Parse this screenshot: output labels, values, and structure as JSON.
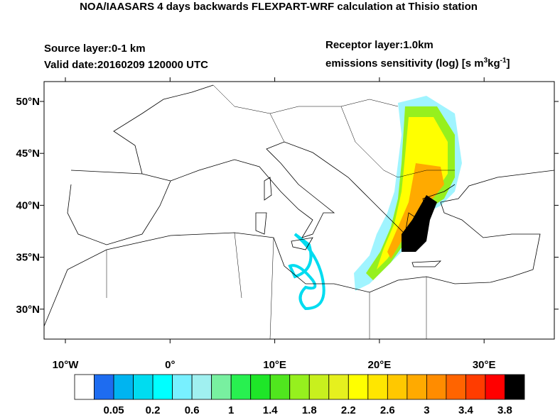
{
  "title": "NOA/IAASARS 4 days backwards FLEXPART-WRF calculation at Thisio station",
  "source_layer": "Source layer:0-1 km",
  "valid_date": "Valid date:20160209 120000 UTC",
  "receptor_layer": "Receptor layer:1.0km",
  "units_label": [
    "emissions sensitivity (log) [s m",
    "3",
    "kg",
    "-1",
    "]"
  ],
  "map": {
    "lat_labels": [
      "50°N",
      "45°N",
      "40°N",
      "35°N",
      "30°N"
    ],
    "lon_labels": [
      "10°W",
      "0°",
      "10°E",
      "20°E",
      "30°E"
    ]
  },
  "colorbar": {
    "colors": [
      "#ffffff",
      "#1e6cf0",
      "#00b4f0",
      "#00dcf0",
      "#00ffff",
      "#78f0ff",
      "#a0f0f0",
      "#78f0a0",
      "#28f050",
      "#1ee628",
      "#50e61e",
      "#96f01e",
      "#c8f01e",
      "#e6f01e",
      "#ffff00",
      "#ffe600",
      "#ffc800",
      "#ffaa00",
      "#ff8c00",
      "#ff6400",
      "#ff3c00",
      "#ff0000",
      "#000000"
    ],
    "labels": [
      "0.05",
      "0.2",
      "0.6",
      "1",
      "1.4",
      "1.8",
      "2.2",
      "2.6",
      "3",
      "3.4",
      "3.8"
    ]
  }
}
